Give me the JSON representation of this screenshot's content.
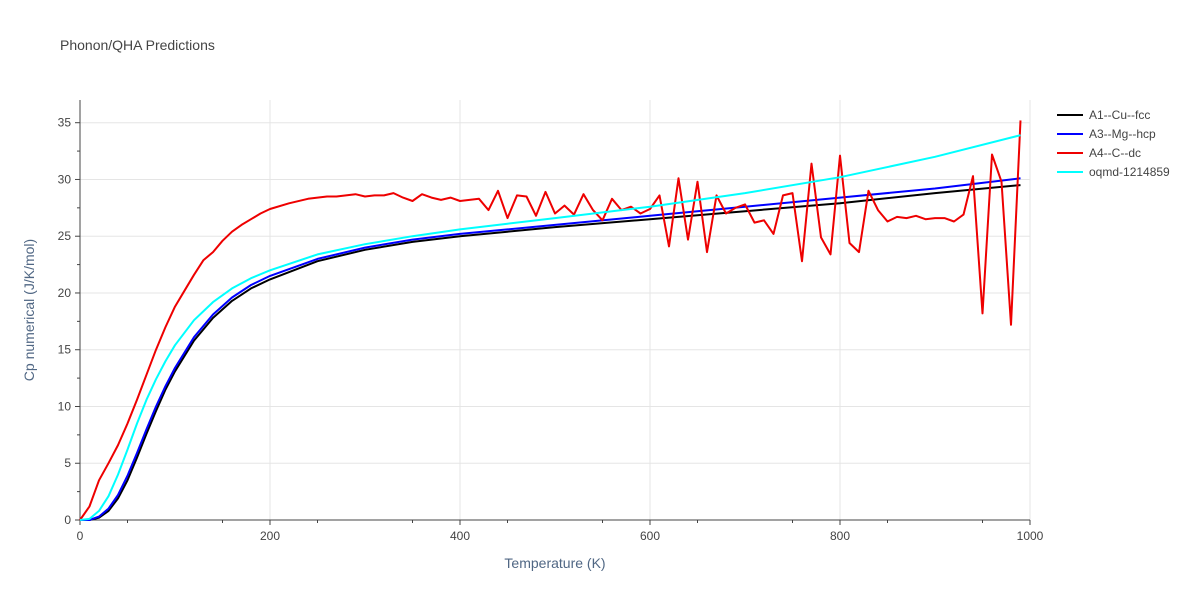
{
  "chart_data": {
    "type": "line",
    "title": "Phonon/QHA Predictions",
    "xlabel": "Temperature (K)",
    "ylabel": "Cp numerical (J/K/mol)",
    "xlim": [
      0,
      1000
    ],
    "ylim": [
      0,
      37
    ],
    "x_ticks": [
      0,
      200,
      400,
      600,
      800,
      1000
    ],
    "y_ticks": [
      0,
      5,
      10,
      15,
      20,
      25,
      30,
      35
    ],
    "grid": true,
    "legend_position": "right",
    "series": [
      {
        "name": "A1--Cu--fcc",
        "color": "#000000",
        "x": [
          0,
          10,
          20,
          30,
          40,
          50,
          60,
          70,
          80,
          90,
          100,
          120,
          140,
          160,
          180,
          200,
          250,
          300,
          350,
          400,
          450,
          500,
          600,
          700,
          800,
          900,
          990
        ],
        "y": [
          0,
          0,
          0.2,
          0.8,
          1.9,
          3.5,
          5.5,
          7.6,
          9.6,
          11.5,
          13.1,
          15.8,
          17.8,
          19.3,
          20.4,
          21.2,
          22.8,
          23.8,
          24.5,
          25.0,
          25.4,
          25.8,
          26.5,
          27.2,
          27.9,
          28.8,
          29.5
        ]
      },
      {
        "name": "A3--Mg--hcp",
        "color": "#0000ff",
        "x": [
          0,
          10,
          20,
          30,
          40,
          50,
          60,
          70,
          80,
          90,
          100,
          120,
          140,
          160,
          180,
          200,
          250,
          300,
          350,
          400,
          450,
          500,
          600,
          700,
          800,
          900,
          990
        ],
        "y": [
          0,
          0,
          0.3,
          1.0,
          2.2,
          3.9,
          5.9,
          8.0,
          10.0,
          11.8,
          13.4,
          16.1,
          18.1,
          19.6,
          20.7,
          21.5,
          23.0,
          24.0,
          24.7,
          25.2,
          25.6,
          26.0,
          26.8,
          27.6,
          28.4,
          29.2,
          30.1
        ]
      },
      {
        "name": "A4--C--dc",
        "color": "#ee0000",
        "x": [
          0,
          10,
          20,
          30,
          40,
          50,
          60,
          70,
          80,
          90,
          100,
          110,
          120,
          130,
          140,
          150,
          160,
          170,
          180,
          190,
          200,
          220,
          240,
          260,
          270,
          280,
          290,
          300,
          310,
          320,
          330,
          340,
          350,
          360,
          370,
          380,
          390,
          400,
          410,
          420,
          430,
          440,
          450,
          460,
          470,
          480,
          490,
          500,
          510,
          520,
          530,
          540,
          550,
          560,
          570,
          580,
          590,
          600,
          610,
          620,
          630,
          640,
          650,
          660,
          670,
          680,
          690,
          700,
          710,
          720,
          730,
          740,
          750,
          760,
          770,
          780,
          790,
          800,
          810,
          820,
          830,
          840,
          850,
          860,
          870,
          880,
          890,
          900,
          910,
          920,
          930,
          940,
          950,
          960,
          970,
          980,
          990
        ],
        "y": [
          0,
          1.2,
          3.5,
          5.0,
          6.6,
          8.5,
          10.6,
          12.8,
          15.0,
          17.0,
          18.8,
          20.2,
          21.6,
          22.9,
          23.6,
          24.6,
          25.4,
          26.0,
          26.5,
          27.0,
          27.4,
          27.9,
          28.3,
          28.5,
          28.5,
          28.6,
          28.7,
          28.5,
          28.6,
          28.6,
          28.8,
          28.4,
          28.1,
          28.7,
          28.4,
          28.2,
          28.4,
          28.1,
          28.2,
          28.3,
          27.3,
          29.0,
          26.6,
          28.6,
          28.5,
          26.8,
          28.9,
          27.0,
          27.7,
          26.9,
          28.7,
          27.3,
          26.4,
          28.3,
          27.3,
          27.6,
          27.0,
          27.4,
          28.6,
          24.1,
          30.1,
          24.7,
          29.8,
          23.6,
          28.6,
          27.0,
          27.5,
          27.8,
          26.2,
          26.4,
          25.2,
          28.6,
          28.8,
          22.8,
          31.4,
          24.9,
          23.4,
          32.1,
          24.4,
          23.6,
          29.0,
          27.3,
          26.3,
          26.7,
          26.6,
          26.8,
          26.5,
          26.6,
          26.6,
          26.3,
          26.9,
          30.3,
          18.2,
          32.2,
          29.8,
          17.2,
          35.2
        ]
      },
      {
        "name": "oqmd-1214859",
        "color": "#00ffff",
        "x": [
          0,
          10,
          20,
          30,
          40,
          50,
          60,
          70,
          80,
          90,
          100,
          120,
          140,
          160,
          180,
          200,
          250,
          300,
          350,
          400,
          450,
          500,
          600,
          700,
          800,
          900,
          990
        ],
        "y": [
          0,
          0.1,
          0.8,
          2.1,
          4.0,
          6.2,
          8.5,
          10.6,
          12.4,
          14.0,
          15.4,
          17.6,
          19.2,
          20.4,
          21.3,
          22.0,
          23.4,
          24.3,
          25.0,
          25.6,
          26.1,
          26.6,
          27.6,
          28.8,
          30.2,
          32.0,
          33.9
        ]
      }
    ]
  }
}
